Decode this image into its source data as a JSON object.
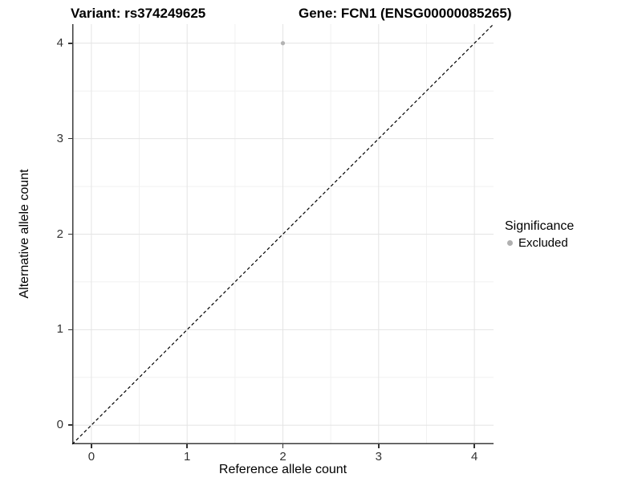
{
  "titles": {
    "variant": "Variant: rs374249625",
    "gene": "Gene: FCN1 (ENSG00000085265)"
  },
  "axes": {
    "x": {
      "label": "Reference allele count",
      "tick_labels": [
        "0",
        "1",
        "2",
        "3",
        "4"
      ]
    },
    "y": {
      "label": "Alternative allele count",
      "tick_labels": [
        "0",
        "1",
        "2",
        "3",
        "4"
      ]
    }
  },
  "legend": {
    "title": "Significance",
    "items": [
      {
        "label": "Excluded",
        "color": "#b0b0b0"
      }
    ]
  },
  "colors": {
    "background": "#ffffff",
    "grid_major": "#e4e4e4",
    "grid_minor": "#f1f1f1",
    "axis_line": "#3c3c3c",
    "tick_mark": "#333333",
    "tick_text": "#333333",
    "point": "#b3b3b3",
    "reference_line": "#000000"
  },
  "chart_data": {
    "type": "scatter",
    "title": "Variant: rs374249625 | Gene: FCN1 (ENSG00000085265)",
    "xlabel": "Reference allele count",
    "ylabel": "Alternative allele count",
    "xlim": [
      -0.2,
      4.2
    ],
    "ylim": [
      -0.2,
      4.2
    ],
    "x_ticks": [
      0,
      1,
      2,
      3,
      4
    ],
    "y_ticks": [
      0,
      1,
      2,
      3,
      4
    ],
    "x_minor_ticks": [
      0.5,
      1.5,
      2.5,
      3.5
    ],
    "y_minor_ticks": [
      0.5,
      1.5,
      2.5,
      3.5
    ],
    "grid": true,
    "legend_position": "right",
    "series": [
      {
        "name": "Excluded",
        "color": "#b3b3b3",
        "points": [
          [
            2,
            4
          ]
        ]
      }
    ],
    "reference_line": {
      "kind": "identity y=x",
      "style": "dashed",
      "color": "#000000",
      "from": [
        -0.2,
        -0.2
      ],
      "to": [
        4.2,
        4.2
      ]
    }
  }
}
